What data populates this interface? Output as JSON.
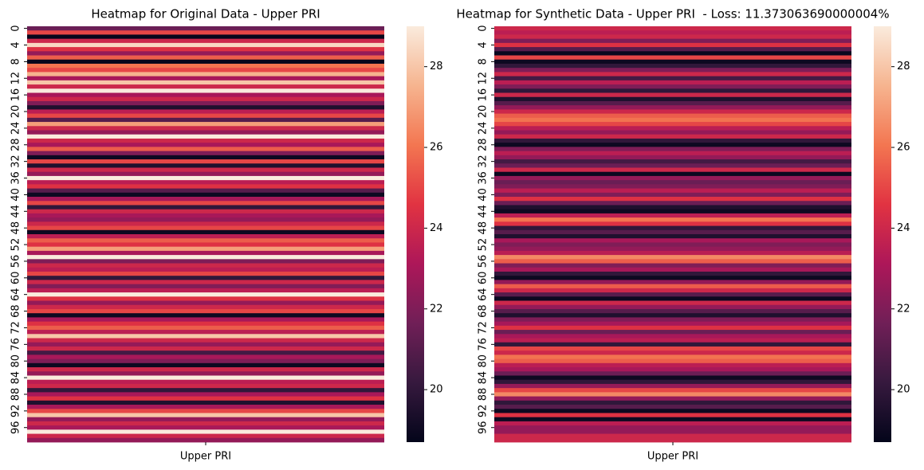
{
  "chart_data": [
    {
      "type": "heatmap",
      "title": "Heatmap for Original Data - Upper PRI",
      "x_categories": [
        "Upper PRI"
      ],
      "y_categories": [
        0,
        null,
        null,
        null,
        4,
        null,
        null,
        null,
        8,
        null,
        null,
        null,
        12,
        null,
        null,
        null,
        16,
        null,
        null,
        null,
        20,
        null,
        null,
        null,
        24,
        null,
        null,
        null,
        28,
        null,
        null,
        null,
        32,
        null,
        null,
        null,
        36,
        null,
        null,
        null,
        40,
        null,
        null,
        null,
        44,
        null,
        null,
        null,
        48,
        null,
        null,
        null,
        52,
        null,
        null,
        null,
        56,
        null,
        null,
        null,
        60,
        null,
        null,
        null,
        64,
        null,
        null,
        null,
        68,
        null,
        null,
        null,
        72,
        null,
        null,
        null,
        76,
        null,
        null,
        null,
        80,
        null,
        null,
        null,
        84,
        null,
        null,
        null,
        88,
        null,
        null,
        null,
        92,
        null,
        null,
        null,
        96,
        null,
        null,
        null
      ],
      "values": [
        21.5,
        25,
        18.8,
        24,
        28.5,
        24.5,
        22.5,
        25.5,
        18.8,
        26,
        25,
        27.5,
        23,
        28,
        24,
        29,
        23,
        24,
        22,
        19.5,
        23.5,
        25,
        21,
        27,
        24,
        22.5,
        29,
        24,
        23,
        25.5,
        22,
        19,
        25,
        19.5,
        24,
        22.5,
        29,
        23.5,
        24.5,
        21,
        19,
        23,
        25,
        20,
        24,
        23,
        22.5,
        24,
        25,
        19,
        23.5,
        25.5,
        24.5,
        27,
        23,
        29,
        22,
        24,
        23.5,
        25,
        20,
        24,
        22,
        23.5,
        29,
        24.5,
        22.5,
        24,
        25,
        19,
        23,
        24.5,
        25.5,
        23.5,
        28,
        24,
        22.5,
        24,
        20.5,
        23,
        22,
        19,
        24,
        22.5,
        29,
        23.5,
        24,
        20,
        23,
        24.5,
        19.5,
        23,
        25,
        28,
        22.5,
        24,
        23,
        29,
        24,
        22.5
      ],
      "zlim": [
        18.7,
        29.0
      ],
      "colorbar_ticks": [
        20,
        22,
        24,
        26,
        28
      ],
      "colormap": [
        "#03051a",
        "#36193e",
        "#701f57",
        "#ad1759",
        "#e13342",
        "#f37651",
        "#f6b48f",
        "#faebdd"
      ]
    },
    {
      "type": "heatmap",
      "title": "Heatmap for Synthetic Data - Upper PRI  - Loss: 11.373063690000004%",
      "x_categories": [
        "Upper PRI"
      ],
      "y_categories": [
        0,
        null,
        null,
        null,
        4,
        null,
        null,
        null,
        8,
        null,
        null,
        null,
        12,
        null,
        null,
        null,
        16,
        null,
        null,
        null,
        20,
        null,
        null,
        null,
        24,
        null,
        null,
        null,
        28,
        null,
        null,
        null,
        32,
        null,
        null,
        null,
        36,
        null,
        null,
        null,
        40,
        null,
        null,
        null,
        44,
        null,
        null,
        null,
        48,
        null,
        null,
        null,
        52,
        null,
        null,
        null,
        56,
        null,
        null,
        null,
        60,
        null,
        null,
        null,
        64,
        null,
        null,
        null,
        68,
        null,
        null,
        null,
        72,
        null,
        null,
        null,
        76,
        null,
        null,
        null,
        80,
        null,
        null,
        null,
        84,
        null,
        null,
        null,
        88,
        null,
        null,
        null,
        92,
        null,
        null,
        null,
        96,
        null,
        null,
        null
      ],
      "values": [
        24,
        23.5,
        24,
        22,
        24.5,
        21,
        18.9,
        25,
        19,
        20,
        22,
        24,
        20.5,
        23.5,
        22,
        20,
        24,
        19.5,
        21,
        22.5,
        24,
        25.5,
        26,
        25,
        23.5,
        22.5,
        24,
        20,
        19,
        22,
        23.5,
        22.5,
        20.5,
        21.5,
        24,
        18.9,
        22.5,
        21.5,
        22,
        23.5,
        22,
        24.5,
        21.5,
        19.5,
        19,
        23.5,
        26,
        24.5,
        20,
        21,
        19.5,
        23,
        22,
        22.5,
        23.5,
        26.5,
        25.5,
        22,
        23,
        20,
        19,
        22.5,
        25.5,
        24,
        21,
        19,
        24,
        22.5,
        21,
        19.5,
        22,
        23,
        24.5,
        21.5,
        23,
        23.5,
        20,
        25,
        24,
        26,
        25.5,
        23.5,
        23,
        21.5,
        19,
        20,
        22.5,
        25,
        26.5,
        22.5,
        20,
        21,
        19,
        24.5,
        19,
        23.5,
        22.5,
        22.5,
        24,
        24
      ],
      "zlim": [
        18.7,
        29.0
      ],
      "colorbar_ticks": [
        20,
        22,
        24,
        26,
        28
      ],
      "colormap": [
        "#03051a",
        "#36193e",
        "#701f57",
        "#ad1759",
        "#e13342",
        "#f37651",
        "#f6b48f",
        "#faebdd"
      ]
    }
  ]
}
